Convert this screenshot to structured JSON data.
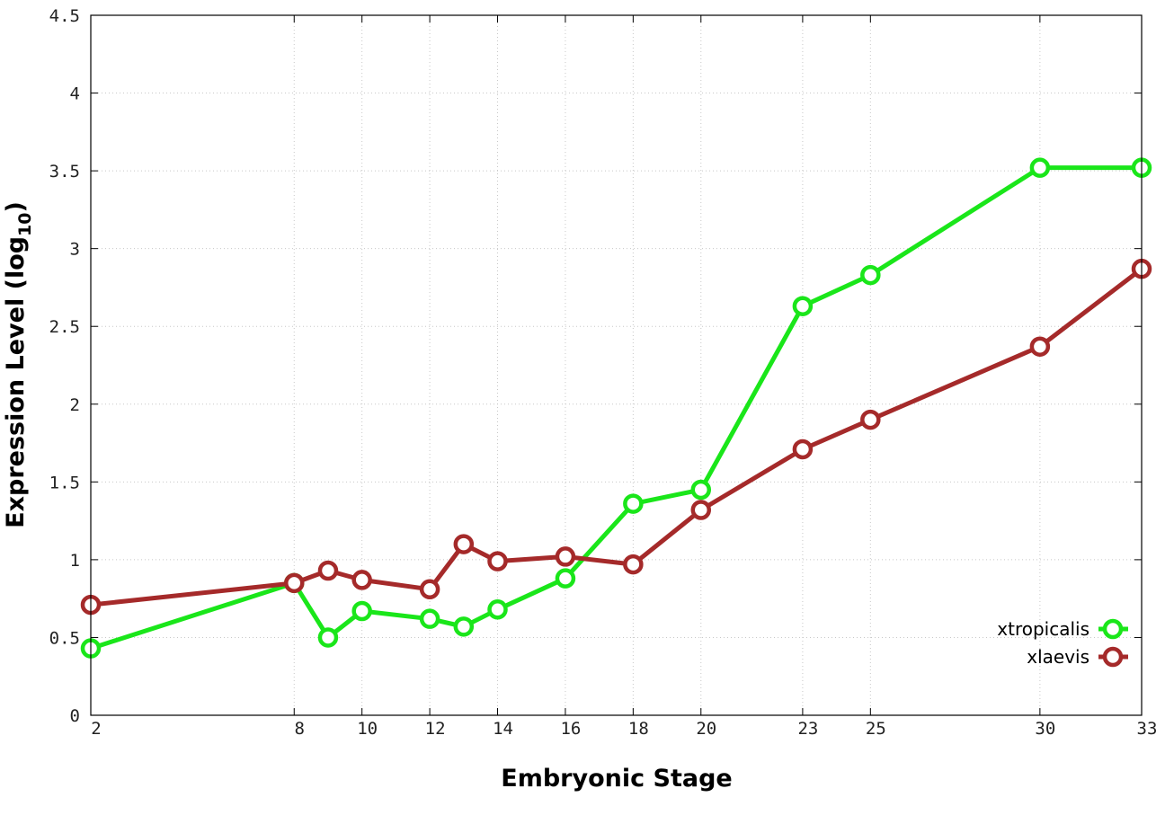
{
  "chart_data": {
    "type": "line",
    "title": "",
    "xlabel": "Embryonic Stage",
    "ylabel_main": "Expression Level (log",
    "ylabel_sub": "10",
    "ylabel_close": ")",
    "x": [
      2,
      8,
      9,
      10,
      12,
      13,
      14,
      16,
      18,
      20,
      23,
      25,
      30,
      33
    ],
    "x_ticks": [
      2,
      8,
      10,
      12,
      14,
      16,
      18,
      20,
      23,
      25,
      30,
      33
    ],
    "x_tick_labels": [
      "2",
      "8",
      "10",
      "12",
      "14",
      "16",
      "18",
      "20",
      "23",
      "25",
      "30",
      "33"
    ],
    "xlim": [
      2,
      33
    ],
    "y_ticks": [
      0,
      0.5,
      1,
      1.5,
      2,
      2.5,
      3,
      3.5,
      4,
      4.5
    ],
    "y_tick_labels": [
      "0",
      "0.5",
      "1",
      "1.5",
      "2",
      "2.5",
      "3",
      "3.5",
      "4",
      "4.5"
    ],
    "ylim": [
      0,
      4.5
    ],
    "grid": true,
    "legend_position": "bottom-right",
    "series": [
      {
        "name": "xtropicalis",
        "color": "#1ae61a",
        "values": [
          0.43,
          0.85,
          0.5,
          0.67,
          0.62,
          0.57,
          0.68,
          0.88,
          1.36,
          1.45,
          2.63,
          2.83,
          3.52,
          3.52
        ]
      },
      {
        "name": "xlaevis",
        "color": "#a52a2a",
        "values": [
          0.71,
          0.85,
          0.93,
          0.87,
          0.81,
          1.1,
          0.99,
          1.02,
          0.97,
          1.32,
          1.71,
          1.9,
          2.37,
          2.87
        ]
      }
    ]
  }
}
